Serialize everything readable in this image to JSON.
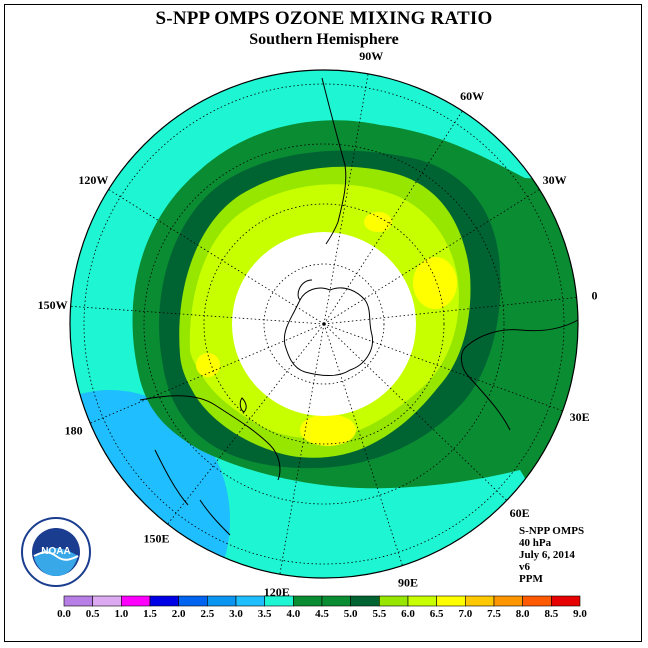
{
  "title": "S-NPP OMPS OZONE MIXING RATIO",
  "subtitle": "Southern Hemisphere",
  "longitude_labels": [
    "90W",
    "60W",
    "30W",
    "0",
    "30E",
    "60E",
    "90E",
    "120E",
    "150E",
    "180",
    "150W",
    "120W"
  ],
  "info_lines": [
    "S-NPP OMPS",
    "40 hPa",
    "July 6, 2014",
    "v6",
    "PPM"
  ],
  "logo": {
    "text": "NOAA",
    "icon": "noaa-logo-icon"
  },
  "colorbar": {
    "ticks": [
      "0.0",
      "0.5",
      "1.0",
      "1.5",
      "2.0",
      "2.5",
      "3.0",
      "3.5",
      "4.0",
      "4.5",
      "5.0",
      "5.5",
      "6.0",
      "6.5",
      "7.0",
      "7.5",
      "8.0",
      "8.5",
      "9.0"
    ],
    "colors": [
      "#b77fe6",
      "#dcaaf0",
      "#ff00ff",
      "#0000e6",
      "#0064f0",
      "#0a96f0",
      "#1ebeff",
      "#1ef5d2",
      "#0a8c32",
      "#0a8c32",
      "#006432",
      "#96e600",
      "#c8ff00",
      "#ffff00",
      "#ffc800",
      "#ff9600",
      "#ff5a00",
      "#e60000",
      "#8c5a3c"
    ]
  },
  "map_colors": {
    "low": "#1ebeff",
    "cyan": "#1ef5d2",
    "green": "#0a8c32",
    "darkgreen": "#006432",
    "lime": "#96e600",
    "yellowgreen": "#c8ff00",
    "yellow": "#ffff00",
    "nodata": "#ffffff"
  }
}
